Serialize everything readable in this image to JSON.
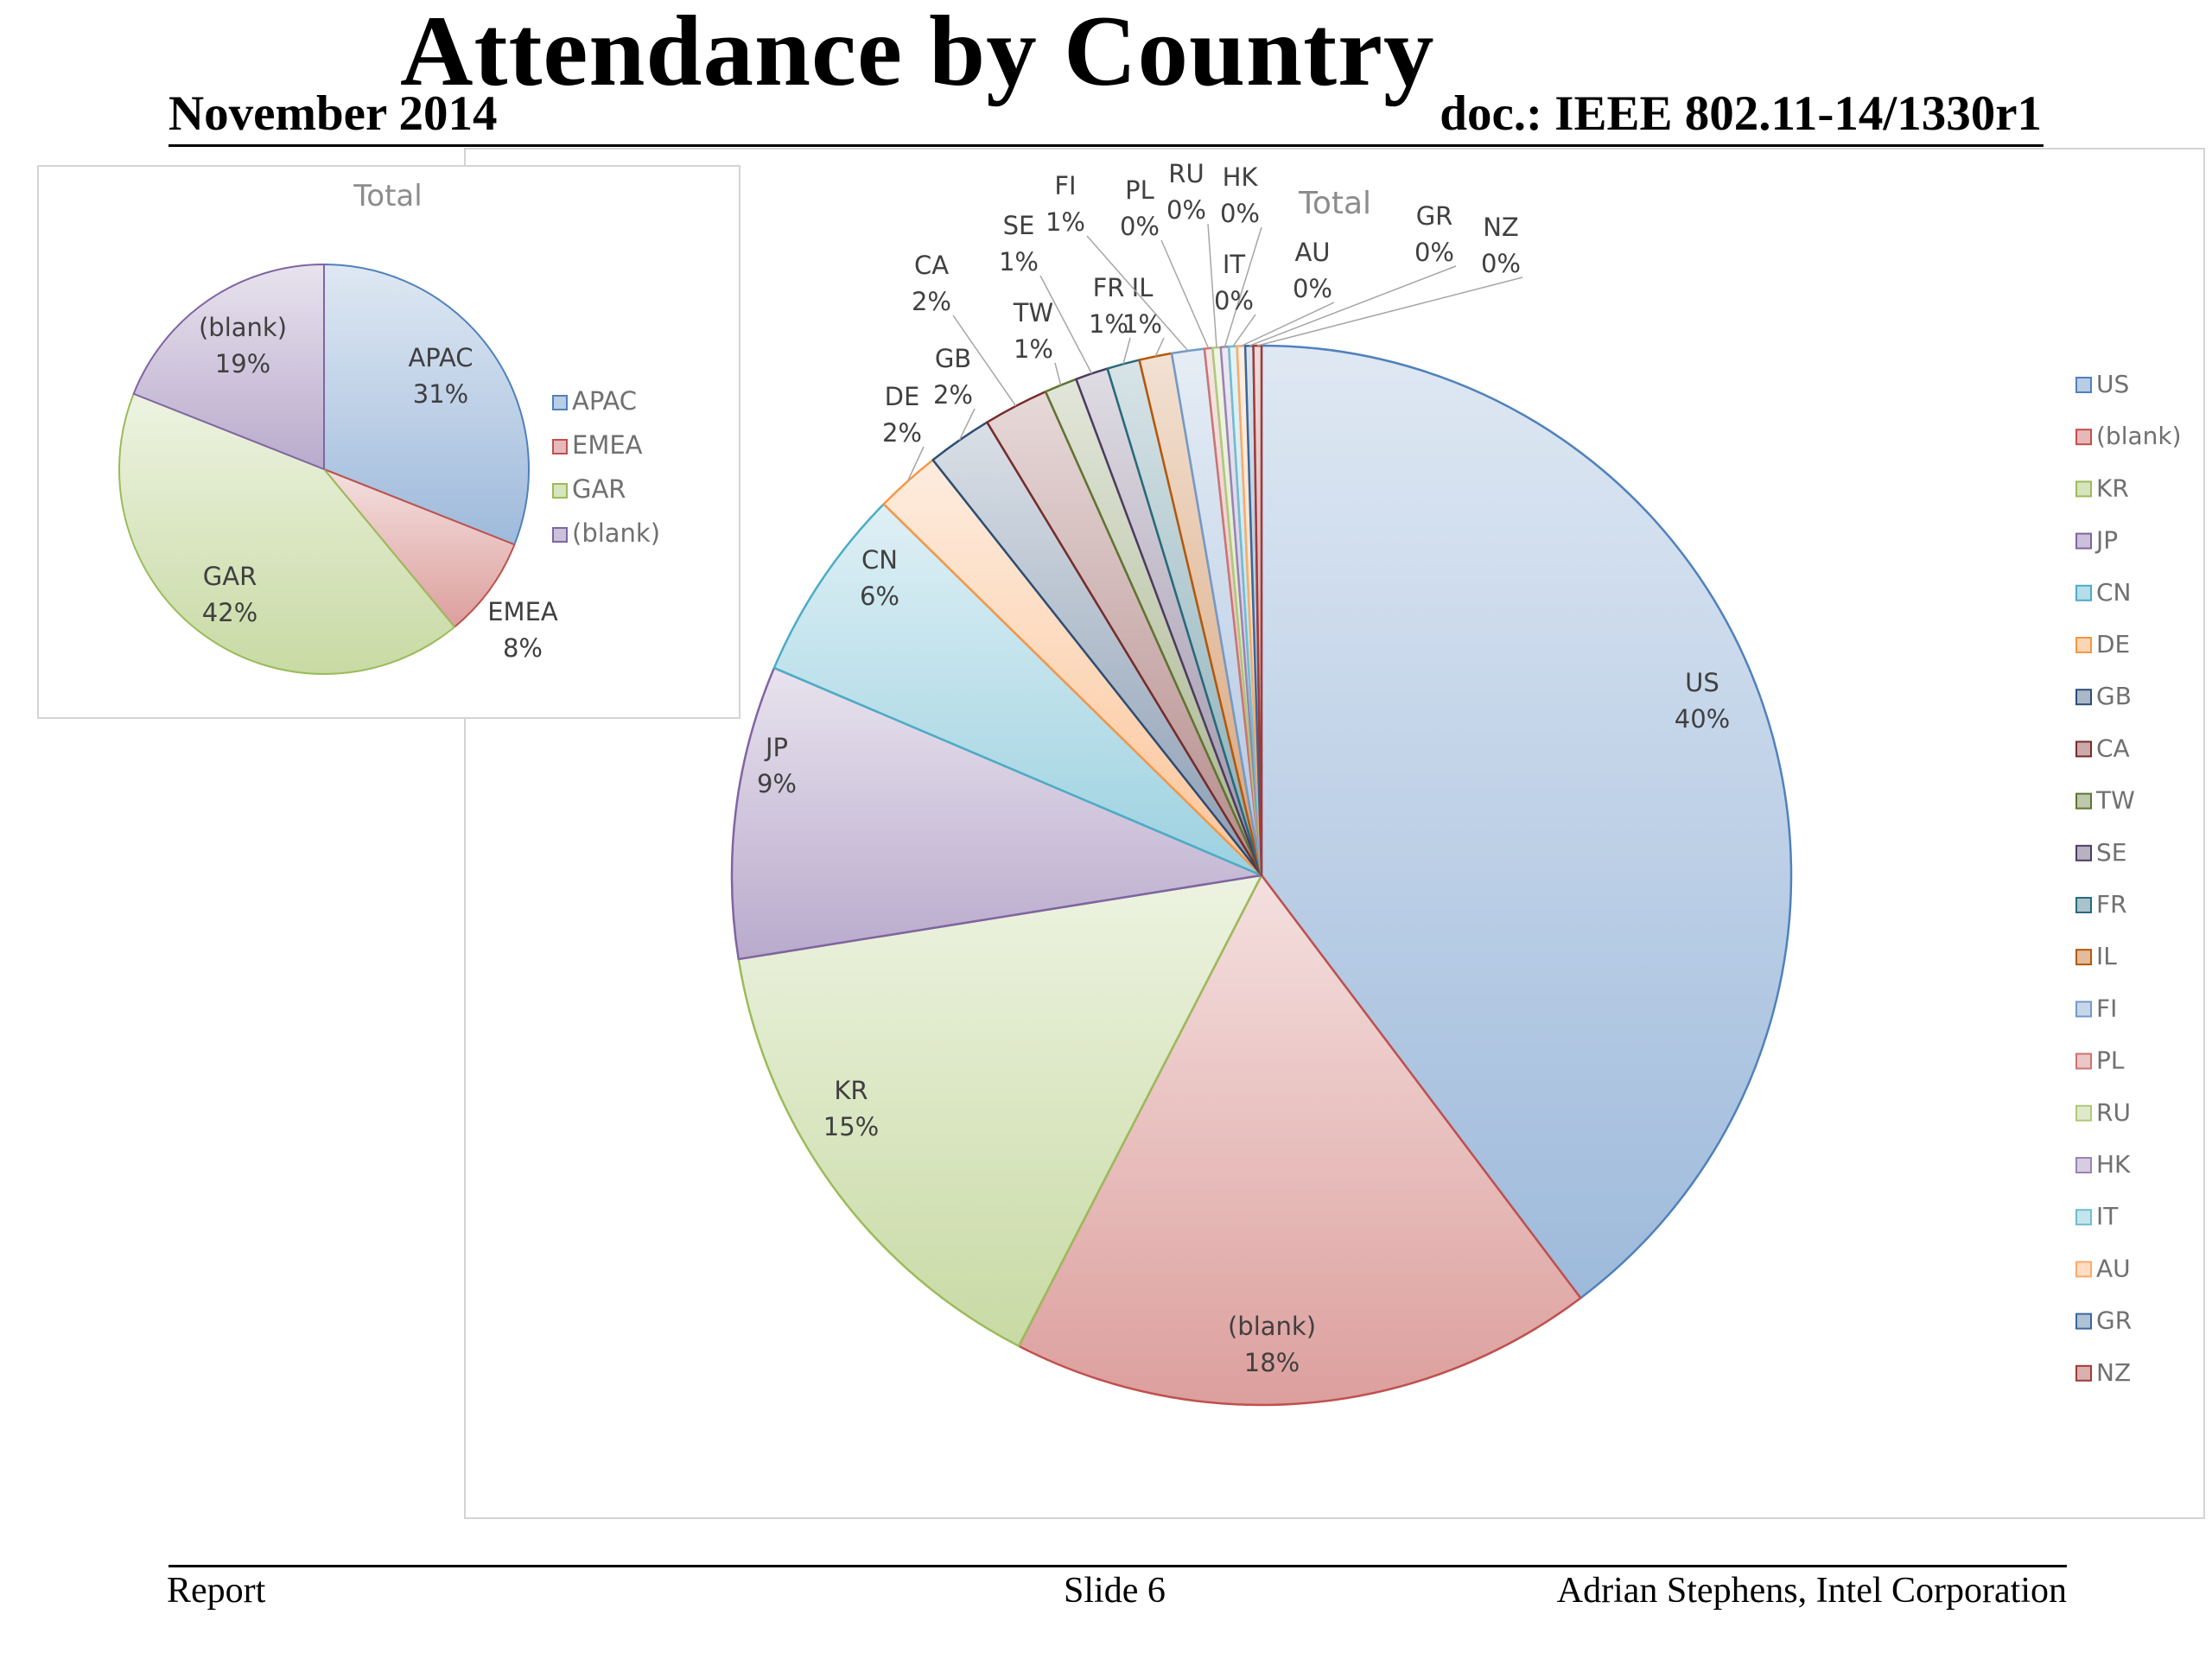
{
  "slide": {
    "title": "Attendance by Country",
    "date": "November 2014",
    "doc": "doc.: IEEE 802.11-14/1330r1",
    "footer_left": "Report",
    "footer_center": "Slide 6",
    "footer_right": "Adrian Stephens, Intel Corporation"
  },
  "chart_data": [
    {
      "type": "pie",
      "title": "Total",
      "legend": "right",
      "categories": [
        "US",
        "(blank)",
        "KR",
        "JP",
        "CN",
        "DE",
        "GB",
        "CA",
        "TW",
        "SE",
        "FR",
        "IL",
        "FI",
        "PL",
        "RU",
        "HK",
        "IT",
        "AU",
        "GR",
        "NZ"
      ],
      "values": [
        40,
        18,
        15,
        9,
        6,
        2,
        2,
        2,
        1,
        1,
        1,
        1,
        1,
        0,
        0,
        0,
        0,
        0,
        0,
        0
      ],
      "data_labels": [
        "40%",
        "18%",
        "15%",
        "9%",
        "6%",
        "2%",
        "2%",
        "2%",
        "1%",
        "1%",
        "1%",
        "1%",
        "1%",
        "0%",
        "0%",
        "0%",
        "0%",
        "0%",
        "0%",
        "0%"
      ],
      "colors": [
        "#4f81bd",
        "#c0504d",
        "#9bbb59",
        "#8064a2",
        "#4bacc6",
        "#f79646",
        "#2c4d75",
        "#772c2a",
        "#5f7530",
        "#4d3b62",
        "#276a7c",
        "#b65708",
        "#729aca",
        "#cd7371",
        "#afc97a",
        "#9983b5",
        "#6fbdd1",
        "#f9ab6b",
        "#3a679c",
        "#9f3b38"
      ]
    },
    {
      "type": "pie",
      "title": "Total",
      "legend": "right",
      "categories": [
        "APAC",
        "EMEA",
        "GAR",
        "(blank)"
      ],
      "values": [
        31,
        8,
        42,
        19
      ],
      "data_labels": [
        "31%",
        "8%",
        "42%",
        "19%"
      ],
      "colors": [
        "#4f81bd",
        "#c0504d",
        "#9bbb59",
        "#8064a2"
      ]
    }
  ]
}
